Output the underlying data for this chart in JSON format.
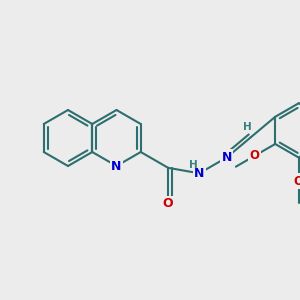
{
  "bg": "#ececec",
  "bond_color": "#2d6e6e",
  "n_color": "#0000cc",
  "o_color": "#cc0000",
  "h_color": "#3a8080",
  "lw": 1.5,
  "xlim": [
    0,
    300
  ],
  "ylim": [
    0,
    300
  ],
  "figsize": [
    3.0,
    3.0
  ],
  "dpi": 100
}
